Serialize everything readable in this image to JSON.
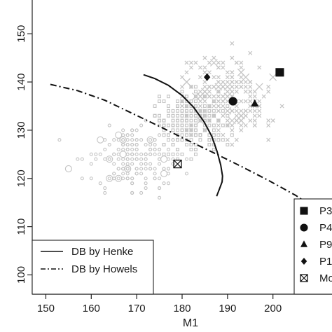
{
  "chart_data": {
    "type": "scatter",
    "title": "",
    "xlabel": "M1",
    "ylabel": "",
    "xlim": [
      147,
      213
    ],
    "ylim": [
      96,
      157
    ],
    "x_ticks": [
      "150",
      "160",
      "170",
      "180",
      "190",
      "200"
    ],
    "y_ticks": [
      "100",
      "110",
      "120",
      "130",
      "140",
      "150"
    ],
    "grid": false,
    "colors": {
      "points": "#c4c4c4",
      "lines": "#111111",
      "markers": "#111111"
    },
    "background_clusters": [
      {
        "marker": "circle",
        "center": [
          170,
          124
        ],
        "spread": [
          7.5,
          5.0
        ],
        "count": 190
      },
      {
        "marker": "square",
        "center": [
          182,
          131
        ],
        "spread": [
          5.5,
          4.5
        ],
        "count": 230
      },
      {
        "marker": "cross",
        "center": [
          190,
          137
        ],
        "spread": [
          7.0,
          5.5
        ],
        "count": 230
      }
    ],
    "lines": [
      {
        "name": "DB by Henke",
        "style": "solid",
        "x": [
          171.5,
          174,
          177,
          180,
          182.5,
          184.8,
          186.5,
          187.7,
          188.5,
          188.9,
          188.8,
          188.3,
          187.6
        ],
        "y": [
          141.5,
          140.7,
          139.3,
          137.2,
          134.8,
          131.8,
          128.8,
          125.6,
          122.8,
          120.5,
          119.3,
          118.0,
          116.3
        ]
      },
      {
        "name": "DB by Howels",
        "style": "dashdot",
        "x": [
          151,
          157,
          163,
          169,
          175,
          181,
          187,
          193,
          199,
          205,
          209,
          211
        ],
        "y": [
          139.5,
          138.2,
          136.2,
          133.5,
          130.8,
          128.0,
          125.3,
          122.5,
          119.6,
          116.5,
          114.0,
          111.5
        ]
      }
    ],
    "highlight_points": [
      {
        "label": "P3",
        "marker": "square",
        "x": 201.5,
        "y": 142
      },
      {
        "label": "P4",
        "marker": "circle",
        "x": 191.2,
        "y": 136
      },
      {
        "label": "P9",
        "marker": "triangle",
        "x": 196,
        "y": 135.5
      },
      {
        "label": "P1",
        "marker": "diamond",
        "x": 185.5,
        "y": 141
      },
      {
        "label": "Mo",
        "marker": "boxcross",
        "x": 179,
        "y": 123
      }
    ],
    "legend_lines": {
      "position": "bottom-left",
      "entries": [
        {
          "label": "DB by Henke",
          "style": "solid"
        },
        {
          "label": "DB by Howels",
          "style": "dashdot"
        }
      ]
    },
    "legend_points": {
      "position": "bottom-right",
      "entries": [
        {
          "label": "P3",
          "marker": "square"
        },
        {
          "label": "P4",
          "marker": "circle"
        },
        {
          "label": "P9",
          "marker": "triangle"
        },
        {
          "label": "P1",
          "marker": "diamond"
        },
        {
          "label": "Mo",
          "marker": "boxcross"
        }
      ]
    }
  }
}
